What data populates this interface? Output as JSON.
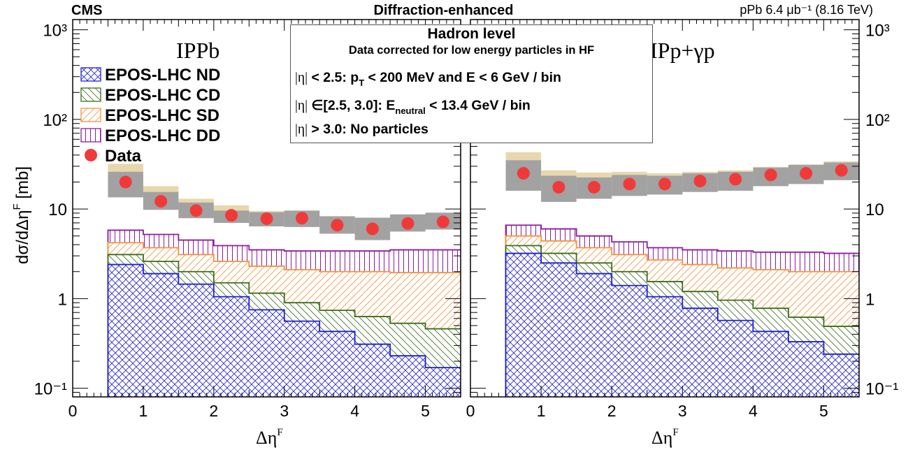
{
  "header": {
    "experiment": "CMS",
    "title": "Diffraction-enhanced",
    "lumi": "pPb 6.4 μb⁻¹ (8.16 TeV)"
  },
  "infobox": {
    "line1": "Hadron level",
    "line2": "Data corrected for low energy particles in HF",
    "row1_eta": "|η|",
    "row1_text": "< 2.5:  p",
    "row1_sub": "T",
    "row1_rest": " < 200 MeV  and  E < 6 GeV / bin",
    "row2_eta": "|η|",
    "row2_text": " ∈[2.5, 3.0]:  E",
    "row2_sub": "neutral",
    "row2_rest": " < 13.4 GeV / bin",
    "row3_eta": "|η|",
    "row3_text": " > 3.0:  No particles"
  },
  "legend": [
    {
      "label": "EPOS-LHC ND",
      "color": "#1f1fd1",
      "style": "crosshatch"
    },
    {
      "label": "EPOS-LHC CD",
      "color": "#3a6e1a",
      "style": "hatch-back"
    },
    {
      "label": "EPOS-LHC SD",
      "color": "#f5923a",
      "style": "hatch-fwd"
    },
    {
      "label": "EPOS-LHC DD",
      "color": "#8e1b9e",
      "style": "vertical"
    },
    {
      "label": "Data",
      "color": "#f03a3a",
      "style": "marker"
    }
  ],
  "chart_data": [
    {
      "type": "bar",
      "panel_label": "IPPb",
      "xlabel": "Δη",
      "xlabel_sup": "F",
      "ylabel": "dσ/dΔη",
      "ylabel_sup": "F",
      "ylabel_unit": "[mb]",
      "xlim": [
        0,
        5.5
      ],
      "ylim": [
        0.08,
        1300
      ],
      "yscale": "log",
      "xticks": [
        "0",
        "1",
        "2",
        "3",
        "4",
        "5"
      ],
      "yticks": [
        "10⁻¹",
        "1",
        "10",
        "10²",
        "10³"
      ],
      "bin_edges": [
        0.5,
        1.0,
        1.5,
        2.0,
        2.5,
        3.0,
        3.5,
        4.0,
        4.5,
        5.0,
        5.5
      ],
      "series": [
        {
          "name": "EPOS-LHC ND",
          "values": [
            2.4,
            1.9,
            1.45,
            1.05,
            0.75,
            0.56,
            0.43,
            0.31,
            0.23,
            0.17
          ]
        },
        {
          "name": "EPOS-LHC CD",
          "values": [
            3.1,
            2.6,
            2.0,
            1.5,
            1.15,
            0.9,
            0.74,
            0.63,
            0.53,
            0.46
          ]
        },
        {
          "name": "EPOS-LHC SD",
          "values": [
            4.2,
            3.7,
            3.1,
            2.6,
            2.3,
            2.1,
            2.0,
            2.0,
            1.95,
            1.95
          ]
        },
        {
          "name": "EPOS-LHC DD",
          "values": [
            5.8,
            5.2,
            4.5,
            3.9,
            3.5,
            3.4,
            3.4,
            3.4,
            3.5,
            3.5
          ]
        },
        {
          "name": "Data",
          "values": [
            20.0,
            12.2,
            9.6,
            8.5,
            7.8,
            7.9,
            6.6,
            6.0,
            6.9,
            7.2
          ]
        }
      ],
      "data_syst_band": {
        "lo": [
          13.5,
          9.8,
          7.9,
          7.0,
          6.4,
          6.3,
          5.3,
          4.5,
          5.6,
          5.9
        ],
        "hi": [
          26.0,
          15.5,
          11.8,
          9.6,
          9.2,
          9.6,
          8.3,
          8.0,
          8.7,
          9.1
        ]
      },
      "model_band_hi": [
        32.0,
        18.0,
        13.0,
        11.0,
        9.5,
        9.4,
        8.3,
        8.0,
        8.6,
        9.0
      ]
    },
    {
      "type": "bar",
      "panel_label": "IPp+γp",
      "xlabel": "Δη",
      "xlabel_sup": "F",
      "xlim": [
        0,
        5.5
      ],
      "ylim": [
        0.08,
        1300
      ],
      "yscale": "log",
      "xticks": [
        "0",
        "1",
        "2",
        "3",
        "4",
        "5"
      ],
      "yticks": [
        "10⁻¹",
        "1",
        "10",
        "10²",
        "10³"
      ],
      "bin_edges": [
        0.5,
        1.0,
        1.5,
        2.0,
        2.5,
        3.0,
        3.5,
        4.0,
        4.5,
        5.0,
        5.5
      ],
      "series": [
        {
          "name": "EPOS-LHC ND",
          "values": [
            3.2,
            2.5,
            1.9,
            1.4,
            1.05,
            0.78,
            0.57,
            0.43,
            0.33,
            0.24
          ]
        },
        {
          "name": "EPOS-LHC CD",
          "values": [
            3.9,
            3.2,
            2.5,
            2.0,
            1.55,
            1.2,
            0.96,
            0.78,
            0.62,
            0.49
          ]
        },
        {
          "name": "EPOS-LHC SD",
          "values": [
            5.0,
            4.4,
            3.7,
            3.1,
            2.7,
            2.4,
            2.2,
            2.1,
            2.0,
            2.0
          ]
        },
        {
          "name": "EPOS-LHC DD",
          "values": [
            6.6,
            6.0,
            5.0,
            4.3,
            3.7,
            3.5,
            3.4,
            3.3,
            3.3,
            3.2
          ]
        },
        {
          "name": "Data",
          "values": [
            25.0,
            17.5,
            17.5,
            19.0,
            19.0,
            20.5,
            21.5,
            24.0,
            25.0,
            27.0
          ]
        }
      ],
      "data_syst_band": {
        "lo": [
          16.0,
          12.0,
          13.0,
          14.0,
          14.5,
          15.5,
          16.0,
          18.0,
          19.0,
          21.0
        ],
        "hi": [
          35.0,
          23.5,
          22.5,
          24.0,
          23.5,
          25.0,
          26.0,
          29.0,
          31.0,
          33.0
        ]
      },
      "model_band_hi": [
        43.0,
        27.0,
        25.5,
        26.0,
        25.0,
        26.0,
        27.0,
        29.5,
        31.5,
        34.0
      ]
    }
  ]
}
